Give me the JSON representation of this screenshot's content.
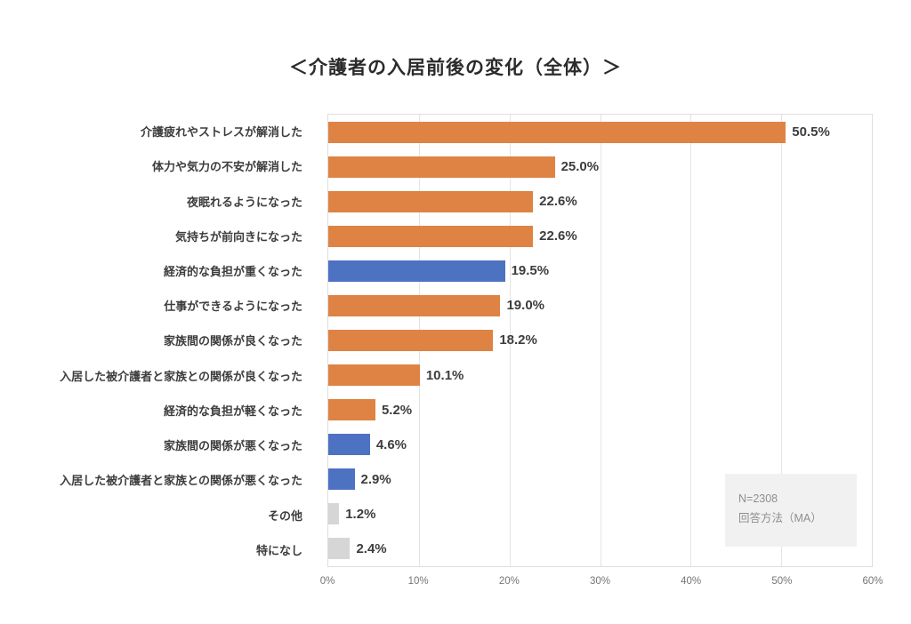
{
  "title": "＜介護者の入居前後の変化（全体）＞",
  "note": {
    "line1": "N=2308",
    "line2": "回答方法（MA）"
  },
  "chart_data": {
    "type": "bar",
    "orientation": "horizontal",
    "title": "＜介護者の入居前後の変化（全体）＞",
    "categories": [
      "介護疲れやストレスが解消した",
      "体力や気力の不安が解消した",
      "夜眠れるようになった",
      "気持ちが前向きになった",
      "経済的な負担が重くなった",
      "仕事ができるようになった",
      "家族間の関係が良くなった",
      "入居した被介護者と家族との関係が良くなった",
      "経済的な負担が軽くなった",
      "家族間の関係が悪くなった",
      "入居した被介護者と家族との関係が悪くなった",
      "その他",
      "特になし"
    ],
    "values": [
      50.5,
      25.0,
      22.6,
      22.6,
      19.5,
      19.0,
      18.2,
      10.1,
      5.2,
      4.6,
      2.9,
      1.2,
      2.4
    ],
    "value_labels": [
      "50.5%",
      "25.0%",
      "22.6%",
      "22.6%",
      "19.5%",
      "19.0%",
      "18.2%",
      "10.1%",
      "5.2%",
      "4.6%",
      "2.9%",
      "1.2%",
      "2.4%"
    ],
    "bar_color_keys": [
      "orange",
      "orange",
      "orange",
      "orange",
      "blue",
      "orange",
      "orange",
      "orange",
      "orange",
      "blue",
      "blue",
      "gray",
      "gray"
    ],
    "colors": {
      "orange": "#DE8344",
      "blue": "#4E72C2",
      "gray": "#D6D6D6"
    },
    "x_ticks": [
      "0%",
      "10%",
      "20%",
      "30%",
      "40%",
      "50%",
      "60%"
    ],
    "xlim": [
      0,
      60
    ],
    "grid": true,
    "legend": "none",
    "sample_note": [
      "N=2308",
      "回答方法（MA）"
    ]
  }
}
